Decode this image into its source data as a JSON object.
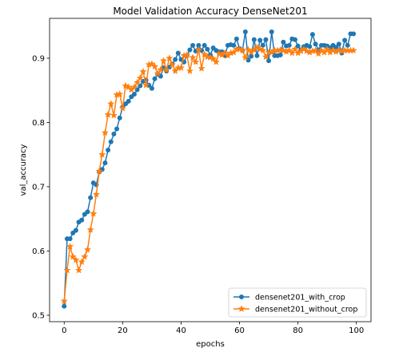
{
  "chart_data": {
    "type": "line",
    "title": "Model Validation Accuracy DenseNet201",
    "xlabel": "epochs",
    "ylabel": "val_accuracy",
    "xlim": [
      -5,
      105
    ],
    "ylim": [
      0.49,
      0.962
    ],
    "xticks": [
      0,
      20,
      40,
      60,
      80,
      100
    ],
    "yticks": [
      0.5,
      0.6,
      0.7,
      0.8,
      0.9
    ],
    "xtick_labels": [
      "0",
      "20",
      "40",
      "60",
      "80",
      "100"
    ],
    "ytick_labels": [
      "0.5",
      "0.6",
      "0.7",
      "0.8",
      "0.9"
    ],
    "grid": false,
    "legend_position": "lower-right",
    "x": [
      0,
      1,
      2,
      3,
      4,
      5,
      6,
      7,
      8,
      9,
      10,
      11,
      12,
      13,
      14,
      15,
      16,
      17,
      18,
      19,
      20,
      21,
      22,
      23,
      24,
      25,
      26,
      27,
      28,
      29,
      30,
      31,
      32,
      33,
      34,
      35,
      36,
      37,
      38,
      39,
      40,
      41,
      42,
      43,
      44,
      45,
      46,
      47,
      48,
      49,
      50,
      51,
      52,
      53,
      54,
      55,
      56,
      57,
      58,
      59,
      60,
      61,
      62,
      63,
      64,
      65,
      66,
      67,
      68,
      69,
      70,
      71,
      72,
      73,
      74,
      75,
      76,
      77,
      78,
      79,
      80,
      81,
      82,
      83,
      84,
      85,
      86,
      87,
      88,
      89,
      90,
      91,
      92,
      93,
      94,
      95,
      96,
      97,
      98,
      99
    ],
    "series": [
      {
        "name": "densenet201_with_crop",
        "color": "#1f77b4",
        "marker": "circle",
        "values": [
          0.514,
          0.619,
          0.619,
          0.628,
          0.632,
          0.645,
          0.648,
          0.657,
          0.661,
          0.683,
          0.706,
          0.703,
          0.723,
          0.727,
          0.737,
          0.757,
          0.77,
          0.782,
          0.79,
          0.807,
          0.824,
          0.829,
          0.833,
          0.84,
          0.844,
          0.851,
          0.857,
          0.864,
          0.866,
          0.858,
          0.853,
          0.868,
          0.875,
          0.872,
          0.885,
          0.88,
          0.886,
          0.891,
          0.898,
          0.908,
          0.898,
          0.894,
          0.904,
          0.913,
          0.92,
          0.911,
          0.92,
          0.912,
          0.92,
          0.914,
          0.905,
          0.916,
          0.912,
          0.91,
          0.91,
          0.904,
          0.92,
          0.921,
          0.92,
          0.93,
          0.915,
          0.912,
          0.941,
          0.897,
          0.903,
          0.929,
          0.904,
          0.928,
          0.92,
          0.929,
          0.896,
          0.941,
          0.904,
          0.904,
          0.905,
          0.925,
          0.919,
          0.92,
          0.93,
          0.929,
          0.919,
          0.913,
          0.918,
          0.92,
          0.918,
          0.937,
          0.922,
          0.913,
          0.92,
          0.92,
          0.919,
          0.916,
          0.92,
          0.917,
          0.922,
          0.908,
          0.928,
          0.92,
          0.938,
          0.938
        ]
      },
      {
        "name": "densenet201_without_crop",
        "color": "#ff7f0e",
        "marker": "star",
        "values": [
          0.522,
          0.57,
          0.607,
          0.591,
          0.586,
          0.57,
          0.583,
          0.591,
          0.602,
          0.633,
          0.658,
          0.688,
          0.724,
          0.75,
          0.784,
          0.812,
          0.829,
          0.811,
          0.843,
          0.844,
          0.822,
          0.857,
          0.855,
          0.851,
          0.855,
          0.862,
          0.869,
          0.879,
          0.858,
          0.89,
          0.891,
          0.887,
          0.876,
          0.882,
          0.896,
          0.882,
          0.9,
          0.89,
          0.88,
          0.885,
          0.885,
          0.904,
          0.905,
          0.88,
          0.901,
          0.894,
          0.913,
          0.884,
          0.906,
          0.902,
          0.901,
          0.899,
          0.894,
          0.907,
          0.905,
          0.908,
          0.904,
          0.908,
          0.909,
          0.914,
          0.914,
          0.912,
          0.901,
          0.913,
          0.909,
          0.913,
          0.917,
          0.914,
          0.912,
          0.902,
          0.909,
          0.909,
          0.912,
          0.912,
          0.913,
          0.912,
          0.91,
          0.912,
          0.908,
          0.914,
          0.908,
          0.911,
          0.914,
          0.911,
          0.909,
          0.911,
          0.912,
          0.907,
          0.912,
          0.909,
          0.914,
          0.909,
          0.912,
          0.91,
          0.912,
          0.911,
          0.912,
          0.912,
          0.912,
          0.912
        ]
      }
    ]
  }
}
